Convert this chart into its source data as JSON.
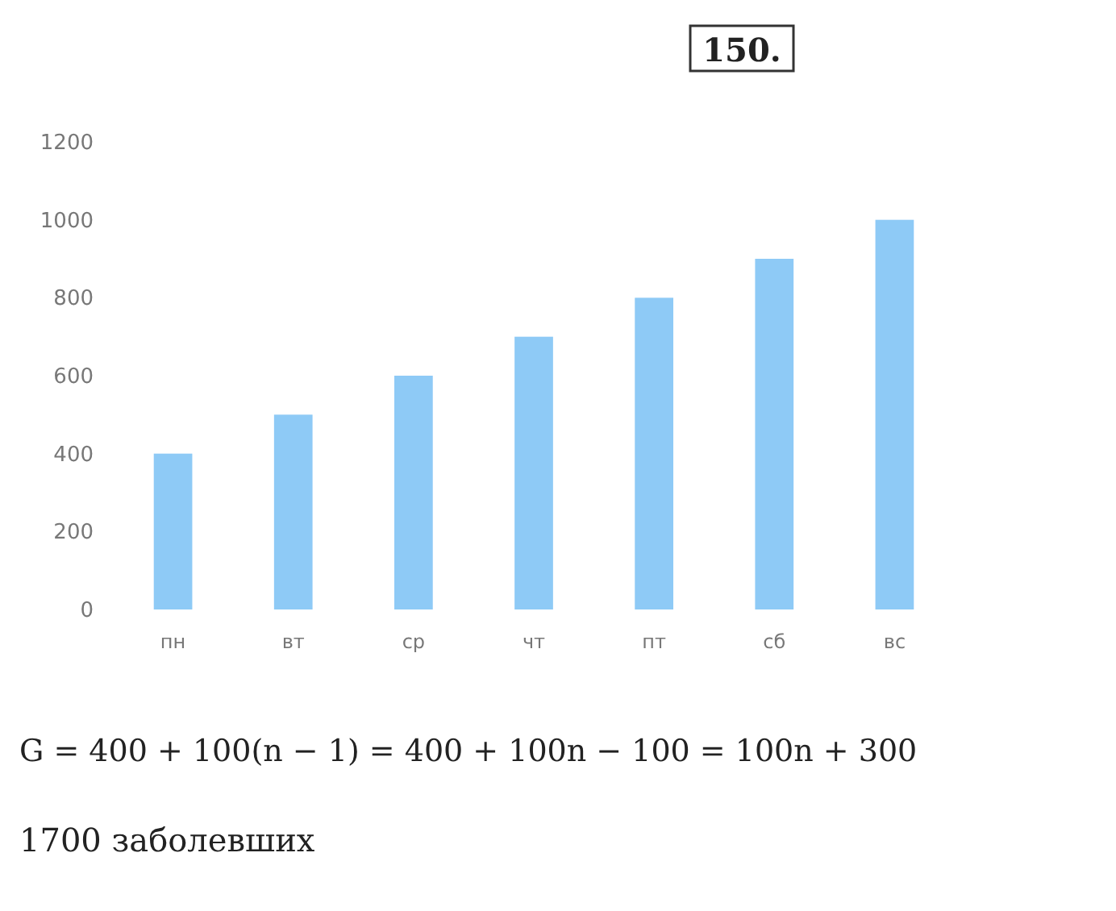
{
  "chart_data": {
    "type": "bar",
    "title": "150.",
    "categories": [
      "пн",
      "вт",
      "ср",
      "чт",
      "пт",
      "сб",
      "вс"
    ],
    "values": [
      400,
      500,
      600,
      700,
      800,
      900,
      1000
    ],
    "color": "#8ecaf6",
    "ylim": [
      0,
      1200
    ],
    "yticks": [
      0,
      200,
      400,
      600,
      800,
      1000,
      1200
    ],
    "annotations": [
      "G = 400 + 100(n − 1) = 400 + 100n − 100 = 100n + 300",
      "1700 заболевших"
    ]
  }
}
